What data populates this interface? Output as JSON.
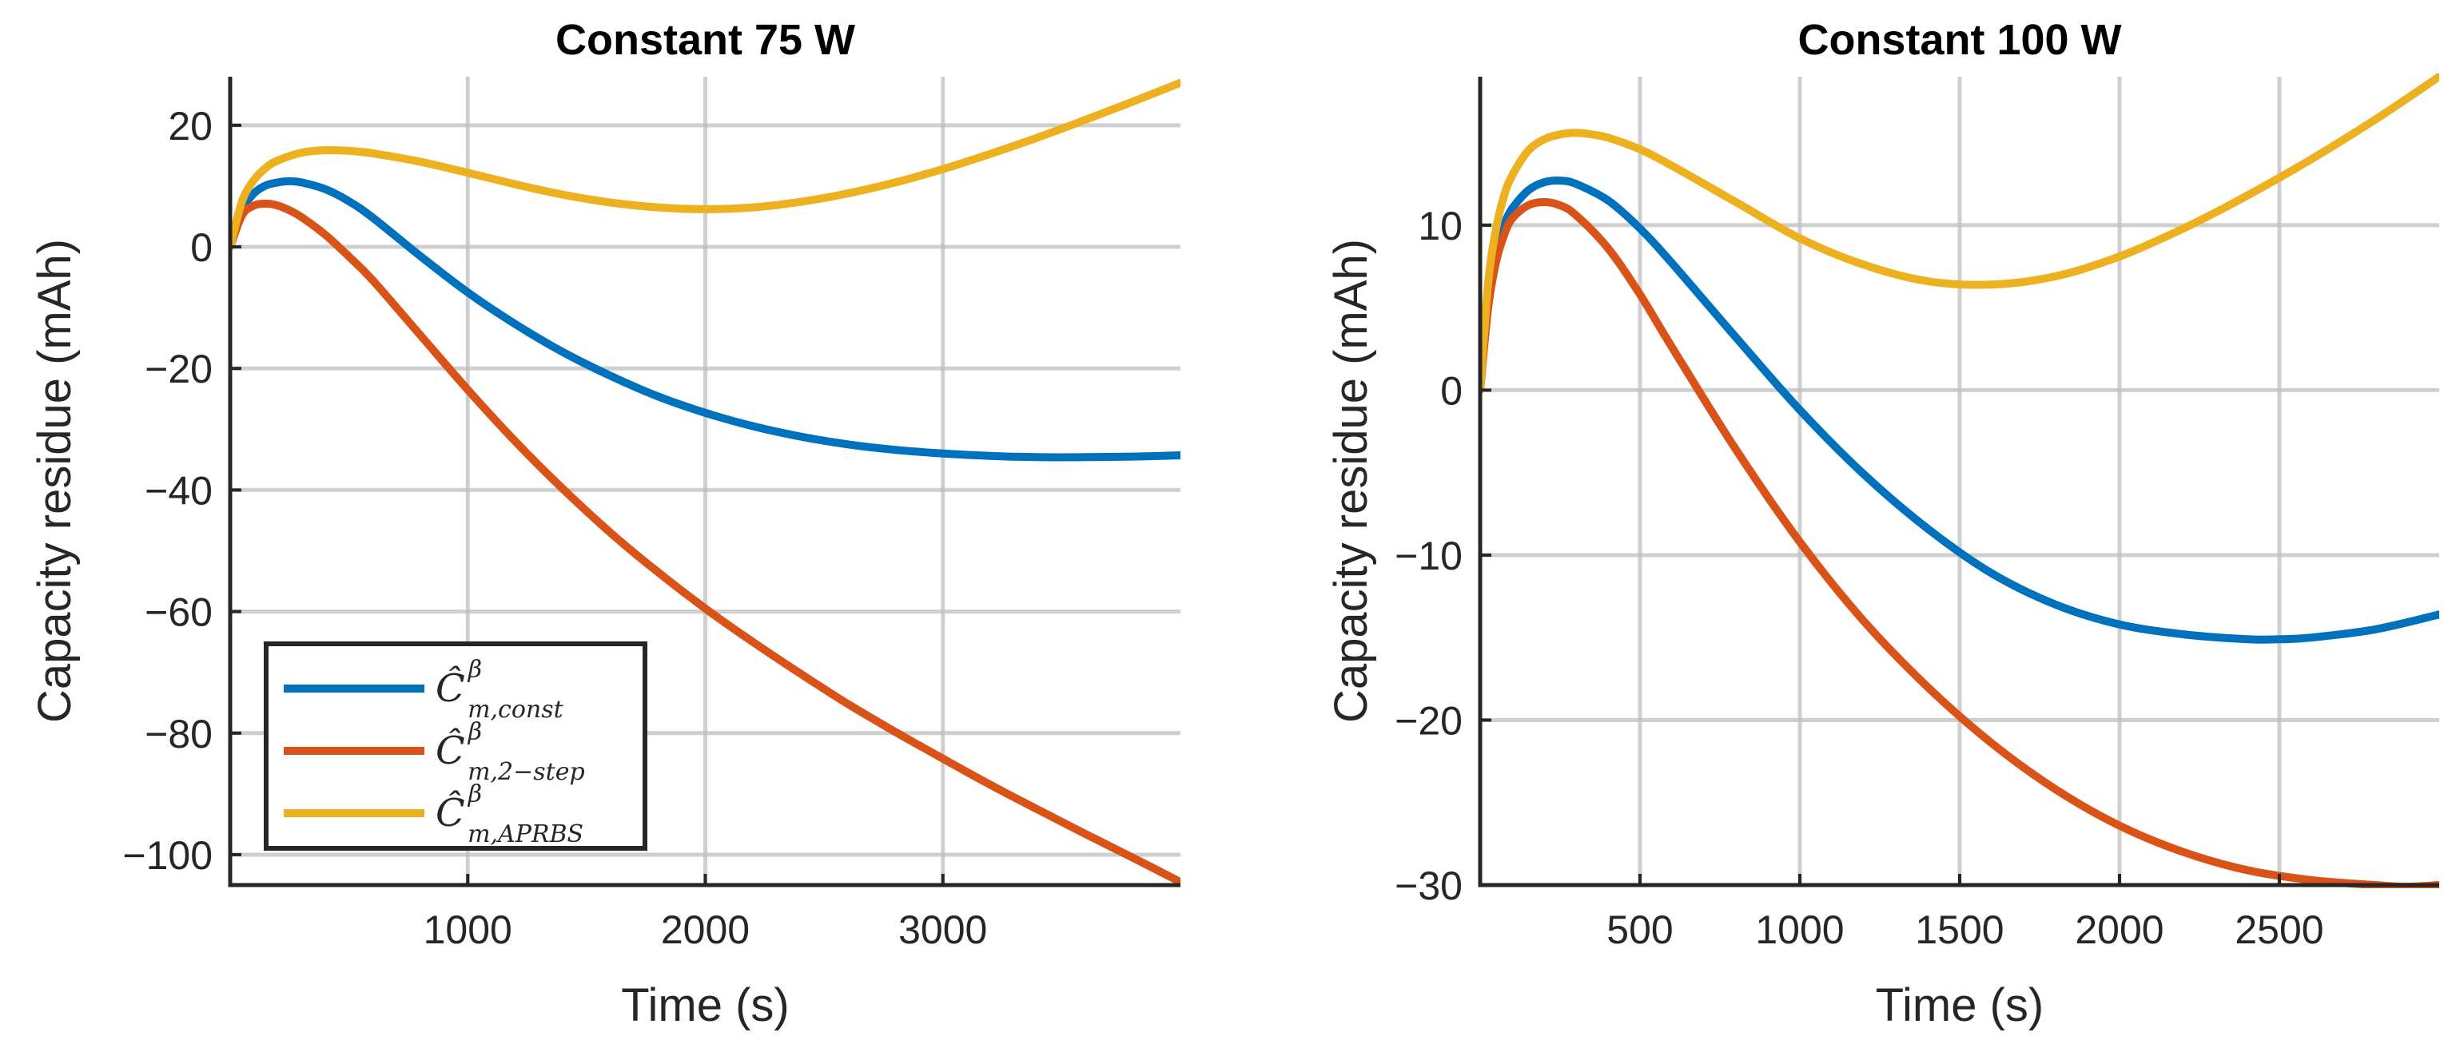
{
  "chart_data": [
    {
      "type": "line",
      "title": "Constant 75 W",
      "xlabel": "Time (s)",
      "ylabel": "Capacity residue (mAh)",
      "xlim": [
        0,
        4000
      ],
      "ylim": [
        -105,
        28
      ],
      "xticks": [
        1000,
        2000,
        3000
      ],
      "xtick_labels": [
        "1000",
        "2000",
        "3000"
      ],
      "yticks": [
        -100,
        -80,
        -60,
        -40,
        -20,
        0,
        20
      ],
      "ytick_labels": [
        "−100",
        "−80",
        "−60",
        "−40",
        "−20",
        "0",
        "20"
      ],
      "grid": true,
      "legend_position": "lower-left",
      "series": [
        {
          "name": "const",
          "legend_base": "Ĉ",
          "legend_sup": "β",
          "legend_sub": "m,const",
          "color": "#0072BD",
          "x": [
            0,
            50,
            100,
            150,
            200,
            250,
            300,
            400,
            500,
            600,
            800,
            1000,
            1200,
            1400,
            1600,
            1800,
            2000,
            2200,
            2400,
            2600,
            2800,
            3000,
            3200,
            3400,
            3600,
            3800,
            4000
          ],
          "y": [
            0,
            6,
            8.8,
            10.1,
            10.6,
            10.8,
            10.6,
            9.5,
            7.5,
            4.8,
            -1.5,
            -7.5,
            -12.7,
            -17.3,
            -21.2,
            -24.6,
            -27.3,
            -29.5,
            -31.2,
            -32.5,
            -33.4,
            -34.0,
            -34.4,
            -34.6,
            -34.6,
            -34.5,
            -34.3
          ]
        },
        {
          "name": "2-step",
          "legend_base": "Ĉ",
          "legend_sup": "β",
          "legend_sub": "m,2−step",
          "color": "#D95319",
          "x": [
            0,
            50,
            100,
            150,
            200,
            250,
            300,
            400,
            500,
            600,
            800,
            1000,
            1200,
            1400,
            1600,
            1800,
            2000,
            2200,
            2400,
            2600,
            2800,
            3000,
            3200,
            3400,
            3600,
            3800,
            4000
          ],
          "y": [
            0,
            5.2,
            6.8,
            7.1,
            6.8,
            6.0,
            4.9,
            2.0,
            -1.6,
            -5.5,
            -14.5,
            -23.5,
            -32.0,
            -39.8,
            -47.0,
            -53.5,
            -59.5,
            -65.0,
            -70.2,
            -75.2,
            -79.8,
            -84.2,
            -88.5,
            -92.6,
            -96.6,
            -100.5,
            -104.5
          ]
        },
        {
          "name": "APRBS",
          "legend_base": "Ĉ",
          "legend_sup": "β",
          "legend_sub": "m,APRBS",
          "color": "#EDB120",
          "x": [
            0,
            50,
            100,
            150,
            200,
            300,
            400,
            500,
            600,
            800,
            1000,
            1200,
            1400,
            1600,
            1800,
            2000,
            2200,
            2400,
            2600,
            2800,
            3000,
            3200,
            3400,
            3600,
            3800,
            4000
          ],
          "y": [
            0,
            7.5,
            11.0,
            13.0,
            14.2,
            15.5,
            15.9,
            15.8,
            15.4,
            14.0,
            12.2,
            10.3,
            8.6,
            7.3,
            6.5,
            6.2,
            6.5,
            7.4,
            8.8,
            10.6,
            12.8,
            15.3,
            18.0,
            20.9,
            23.9,
            27.0
          ]
        }
      ]
    },
    {
      "type": "line",
      "title": "Constant 100 W",
      "xlabel": "Time (s)",
      "ylabel": "Capacity residue (mAh)",
      "xlim": [
        0,
        3000
      ],
      "ylim": [
        -30,
        19
      ],
      "xticks": [
        500,
        1000,
        1500,
        2000,
        2500
      ],
      "xtick_labels": [
        "500",
        "1000",
        "1500",
        "2000",
        "2500"
      ],
      "yticks": [
        -30,
        -20,
        -10,
        0,
        10
      ],
      "ytick_labels": [
        "−30",
        "−20",
        "−10",
        "0",
        "10"
      ],
      "grid": true,
      "series": [
        {
          "name": "const",
          "color": "#0072BD",
          "x": [
            0,
            25,
            50,
            75,
            100,
            150,
            200,
            250,
            300,
            400,
            500,
            600,
            800,
            1000,
            1200,
            1400,
            1600,
            1800,
            2000,
            2200,
            2400,
            2500,
            2600,
            2800,
            3000
          ],
          "y": [
            0,
            5.5,
            8.3,
            10.0,
            11.0,
            12.1,
            12.6,
            12.7,
            12.5,
            11.5,
            9.8,
            7.7,
            3.2,
            -1.2,
            -5.1,
            -8.4,
            -11.1,
            -13.0,
            -14.2,
            -14.8,
            -15.1,
            -15.1,
            -15.0,
            -14.5,
            -13.6
          ]
        },
        {
          "name": "2-step",
          "color": "#D95319",
          "x": [
            0,
            25,
            50,
            75,
            100,
            150,
            200,
            250,
            300,
            400,
            500,
            600,
            800,
            1000,
            1200,
            1400,
            1600,
            1800,
            2000,
            2200,
            2400,
            2600,
            2800,
            2900,
            3000
          ],
          "y": [
            0,
            5.0,
            7.8,
            9.4,
            10.4,
            11.2,
            11.4,
            11.2,
            10.6,
            8.6,
            5.8,
            2.6,
            -3.6,
            -9.2,
            -14.0,
            -18.0,
            -21.4,
            -24.2,
            -26.4,
            -28.0,
            -29.1,
            -29.7,
            -30.0,
            -30.1,
            -30.0
          ]
        },
        {
          "name": "APRBS",
          "color": "#EDB120",
          "x": [
            0,
            25,
            50,
            75,
            100,
            150,
            200,
            250,
            300,
            350,
            400,
            500,
            600,
            800,
            1000,
            1200,
            1400,
            1600,
            1800,
            2000,
            2200,
            2400,
            2600,
            2800,
            3000
          ],
          "y": [
            0,
            6.5,
            9.8,
            11.8,
            13.0,
            14.5,
            15.2,
            15.5,
            15.6,
            15.5,
            15.3,
            14.6,
            13.6,
            11.4,
            9.2,
            7.6,
            6.6,
            6.4,
            6.9,
            8.1,
            9.8,
            11.8,
            14.0,
            16.4,
            19.0
          ]
        }
      ]
    }
  ]
}
